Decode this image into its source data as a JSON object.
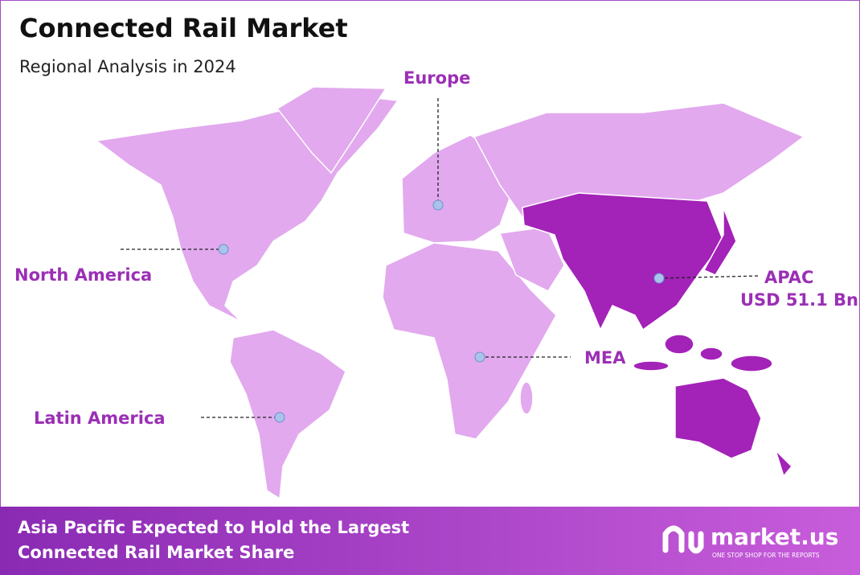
{
  "header": {
    "title": "Connected Rail Market",
    "subtitle": "Regional Analysis in 2024"
  },
  "regions": [
    {
      "label": "North America"
    },
    {
      "label": "Europe"
    },
    {
      "label": "APAC",
      "value": "USD 51.1 Bn"
    },
    {
      "label": "MEA"
    },
    {
      "label": "Latin America"
    }
  ],
  "footer": {
    "headline": [
      "Asia Pacific Expected to Hold the Largest",
      "Connected Rail Market Share"
    ],
    "brand": "market.us",
    "tagline": "ONE STOP SHOP FOR THE REPORTS"
  }
}
